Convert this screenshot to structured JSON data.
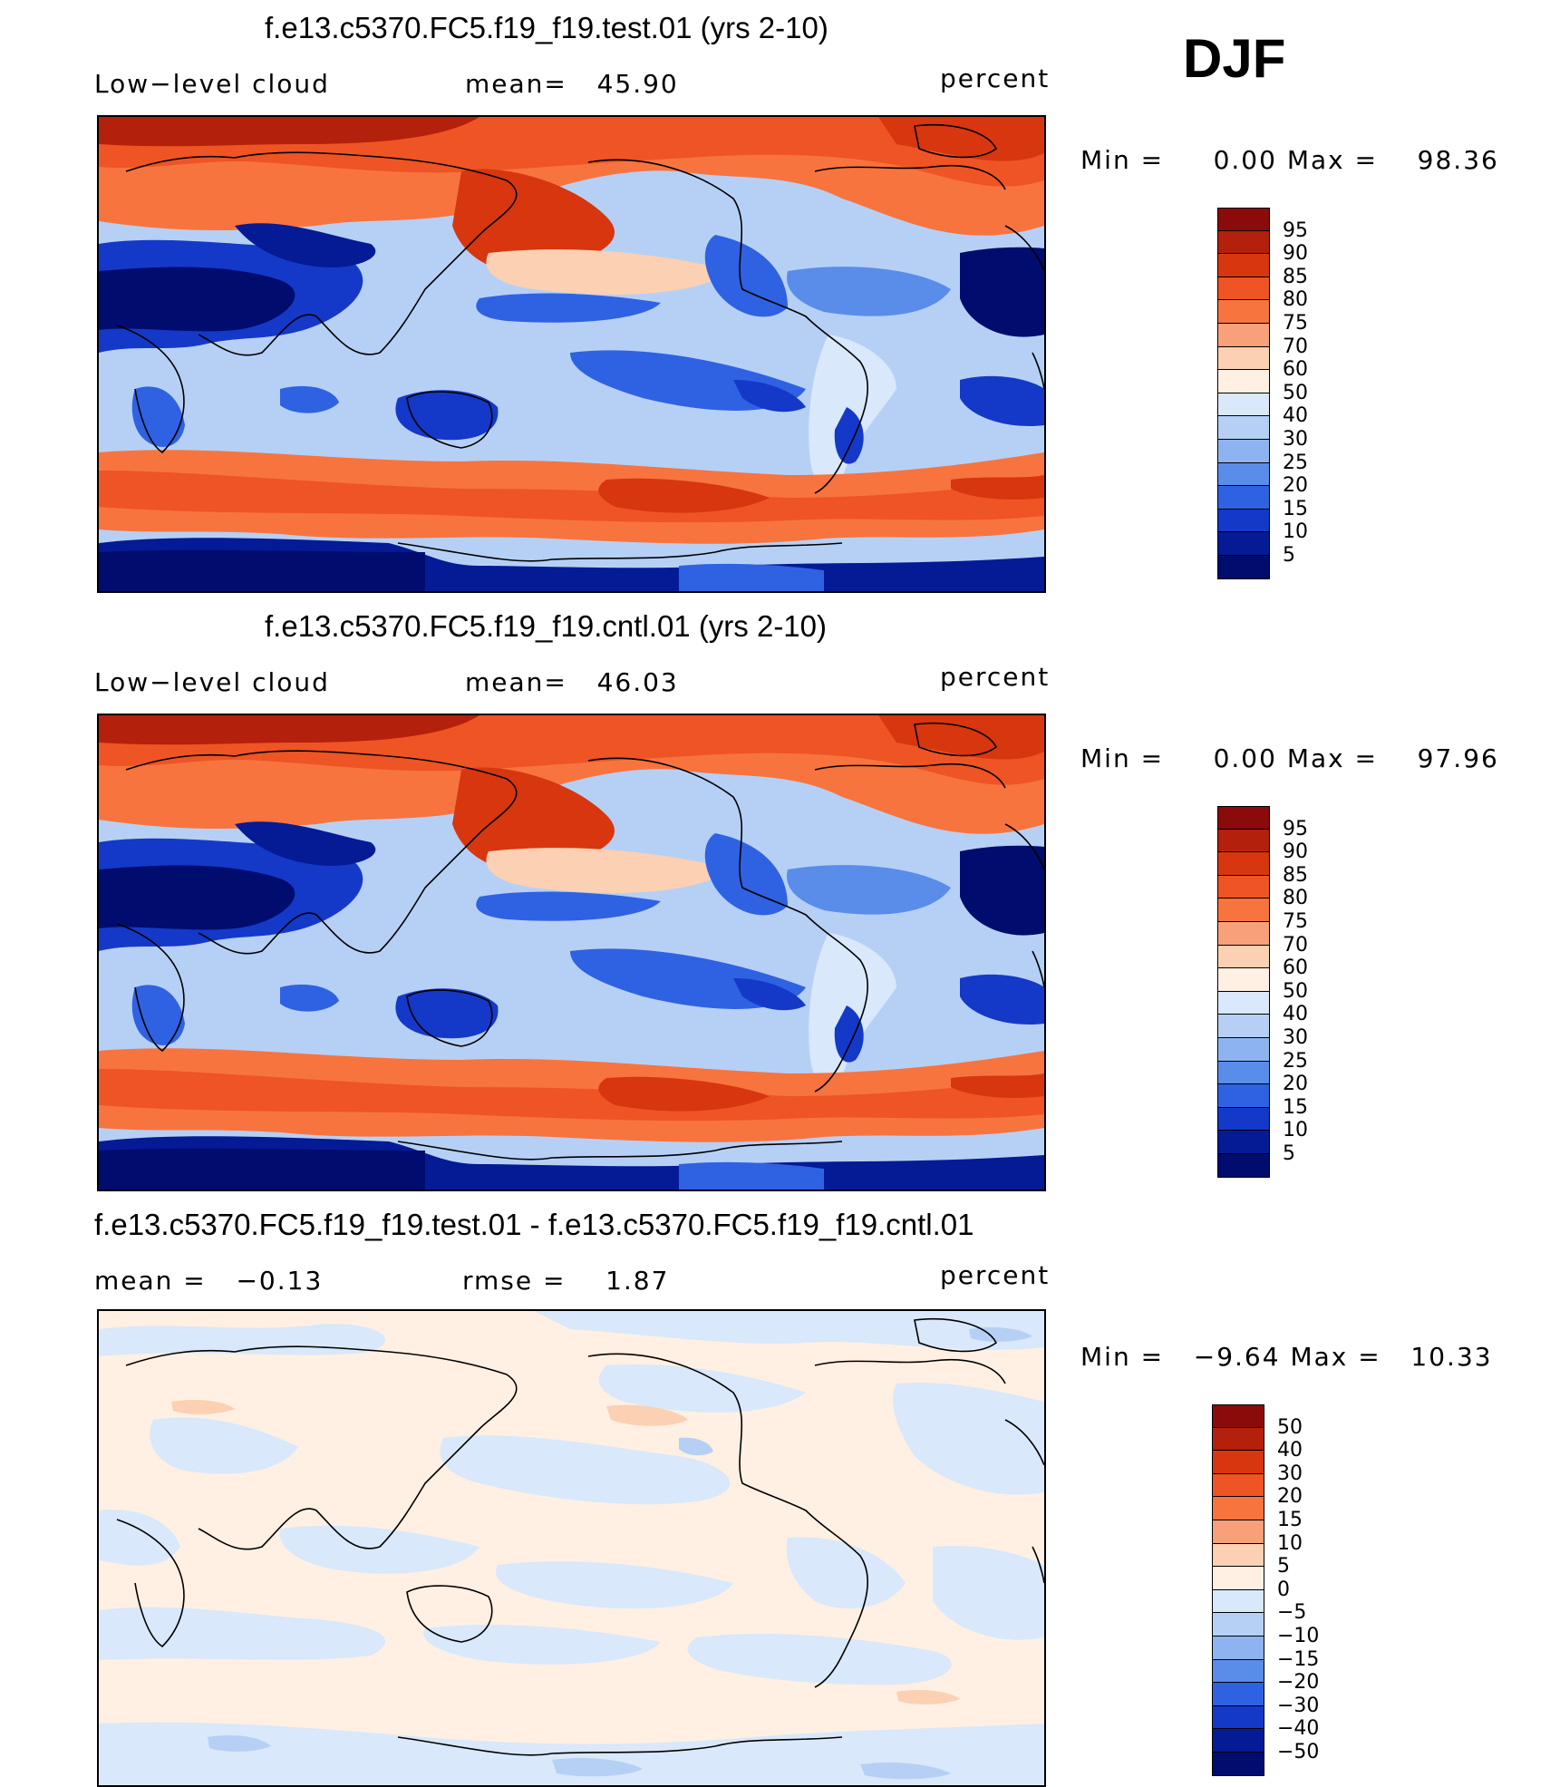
{
  "season": "DJF",
  "panels": [
    {
      "title": "f.e13.c5370.FC5.f19_f19.test.01 (yrs 2-10)",
      "left_label": "Low−level cloud",
      "center_label": "mean=   45.90",
      "right_label": "percent",
      "min_label": "Min =",
      "min_value": "0.00",
      "max_label": "Max =",
      "max_value": "98.36",
      "colorbar": {
        "labels": [
          "95",
          "90",
          "85",
          "80",
          "75",
          "70",
          "60",
          "50",
          "40",
          "30",
          "25",
          "20",
          "15",
          "10",
          "5"
        ],
        "colors": [
          "#8b0a0a",
          "#b3200c",
          "#d8360f",
          "#ef5424",
          "#f7743f",
          "#f8a07a",
          "#fcd0b2",
          "#fff0e3",
          "#d9e8fa",
          "#b6d0f5",
          "#8db4f0",
          "#5a8cea",
          "#2f62e2",
          "#1439c8",
          "#051a95",
          "#000c6e"
        ]
      }
    },
    {
      "title": "f.e13.c5370.FC5.f19_f19.cntl.01 (yrs 2-10)",
      "left_label": "Low−level cloud",
      "center_label": "mean=   46.03",
      "right_label": "percent",
      "min_label": "Min =",
      "min_value": "0.00",
      "max_label": "Max =",
      "max_value": "97.96",
      "colorbar": {
        "labels": [
          "95",
          "90",
          "85",
          "80",
          "75",
          "70",
          "60",
          "50",
          "40",
          "30",
          "25",
          "20",
          "15",
          "10",
          "5"
        ],
        "colors": [
          "#8b0a0a",
          "#b3200c",
          "#d8360f",
          "#ef5424",
          "#f7743f",
          "#f8a07a",
          "#fcd0b2",
          "#fff0e3",
          "#d9e8fa",
          "#b6d0f5",
          "#8db4f0",
          "#5a8cea",
          "#2f62e2",
          "#1439c8",
          "#051a95",
          "#000c6e"
        ]
      }
    },
    {
      "title": "f.e13.c5370.FC5.f19_f19.test.01 - f.e13.c5370.FC5.f19_f19.cntl.01",
      "left_label": "mean =   −0.13",
      "center_label": "rmse =    1.87",
      "right_label": "percent",
      "min_label": "Min =",
      "min_value": "−9.64",
      "max_label": "Max =",
      "max_value": "10.33",
      "colorbar": {
        "labels": [
          "50",
          "40",
          "30",
          "20",
          "15",
          "10",
          "5",
          "0",
          "−5",
          "−10",
          "−15",
          "−20",
          "−30",
          "−40",
          "−50"
        ],
        "colors": [
          "#8b0a0a",
          "#b3200c",
          "#d8360f",
          "#ef5424",
          "#f7743f",
          "#f8a07a",
          "#fcd0b2",
          "#fff0e3",
          "#d9e8fa",
          "#b6d0f5",
          "#8db4f0",
          "#5a8cea",
          "#2f62e2",
          "#1439c8",
          "#051a95",
          "#000c6e"
        ]
      }
    }
  ]
}
